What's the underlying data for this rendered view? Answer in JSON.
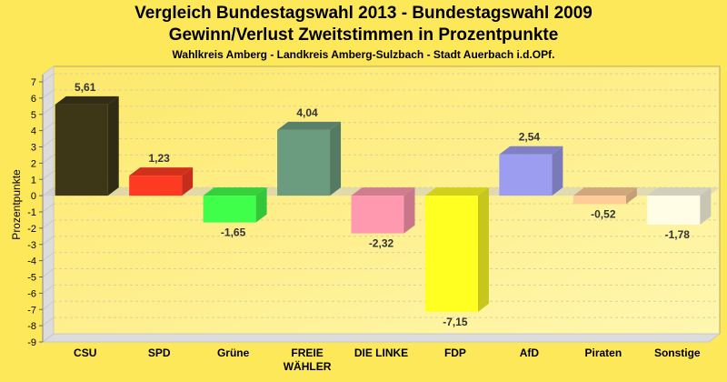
{
  "chart_data": {
    "type": "bar",
    "title": "Vergleich Bundestagswahl 2013 - Bundestagswahl 2009",
    "subtitle": "Gewinn/Verlust Zweitstimmen in Prozentpunkte",
    "subsubtitle": "Wahlkreis Amberg - Landkreis Amberg-Sulzbach - Stadt Auerbach i.d.OPf.",
    "xlabel": "",
    "ylabel": "Prozentpunkte",
    "ylim": [
      -9,
      7
    ],
    "yticks": [
      "7",
      "6",
      "5",
      "4",
      "3",
      "2",
      "1",
      "0",
      "-1",
      "-2",
      "-3",
      "-4",
      "-5",
      "-6",
      "-7",
      "-8",
      "-9"
    ],
    "grid": true,
    "categories": [
      "CSU",
      "SPD",
      "Grüne",
      "FREIE WÄHLER",
      "DIE LINKE",
      "FDP",
      "AfD",
      "Piraten",
      "Sonstige"
    ],
    "category_lines": [
      [
        "CSU"
      ],
      [
        "SPD"
      ],
      [
        "Grüne"
      ],
      [
        "FREIE",
        "WÄHLER"
      ],
      [
        "DIE LINKE"
      ],
      [
        "FDP"
      ],
      [
        "AfD"
      ],
      [
        "Piraten"
      ],
      [
        "Sonstige"
      ]
    ],
    "values": [
      5.61,
      1.23,
      -1.65,
      4.04,
      -2.32,
      -7.15,
      2.54,
      -0.52,
      -1.78
    ],
    "value_labels": [
      "5,61",
      "1,23",
      "-1,65",
      "4,04",
      "-2,32",
      "-7,15",
      "2,54",
      "-0,52",
      "-1,78"
    ],
    "colors": [
      "#3D3718",
      "#FF3A22",
      "#40FF4A",
      "#6C9C80",
      "#FF99B0",
      "#FFFF22",
      "#9C9CF0",
      "#FFCC99",
      "#FFFDE6"
    ]
  }
}
